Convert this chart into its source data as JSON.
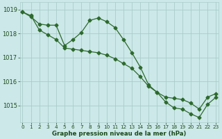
{
  "series1_x": [
    0,
    1,
    2,
    3,
    4,
    5,
    6,
    7,
    8,
    9,
    10,
    11,
    12,
    13,
    14,
    15,
    16,
    17,
    18,
    19,
    20,
    21,
    22,
    23
  ],
  "series1_y": [
    1018.9,
    1018.7,
    1018.4,
    1018.35,
    1018.35,
    1017.5,
    1017.75,
    1018.05,
    1018.55,
    1018.65,
    1018.5,
    1018.25,
    1017.75,
    1017.2,
    1016.6,
    1015.85,
    1015.55,
    1015.15,
    1014.9,
    1014.85,
    1014.65,
    1014.5,
    1015.05,
    1015.35
  ],
  "series2_x": [
    0,
    1,
    2,
    3,
    4,
    5,
    6,
    7,
    8,
    9,
    10,
    11,
    12,
    13,
    14,
    15,
    16,
    17,
    18,
    19,
    20,
    21,
    22,
    23
  ],
  "series2_y": [
    1018.9,
    1018.75,
    1018.15,
    1017.95,
    1017.75,
    1017.4,
    1017.35,
    1017.3,
    1017.25,
    1017.2,
    1017.1,
    1016.95,
    1016.75,
    1016.55,
    1016.2,
    1015.8,
    1015.55,
    1015.35,
    1015.3,
    1015.25,
    1015.1,
    1014.85,
    1015.35,
    1015.5
  ],
  "line_color": "#2d6a2d",
  "marker": "D",
  "markersize": 2.5,
  "linewidth": 0.9,
  "bg_color": "#cce8e8",
  "grid_color": "#aacccc",
  "tick_color": "#1a4a1a",
  "xlabel": "Graphe pression niveau de la mer (hPa)",
  "yticks": [
    1015,
    1016,
    1017,
    1018,
    1019
  ],
  "xticks": [
    0,
    1,
    2,
    3,
    4,
    5,
    6,
    7,
    8,
    9,
    10,
    11,
    12,
    13,
    14,
    15,
    16,
    17,
    18,
    19,
    20,
    21,
    22,
    23
  ],
  "ylim": [
    1014.3,
    1019.3
  ],
  "xlim": [
    -0.3,
    23.3
  ]
}
